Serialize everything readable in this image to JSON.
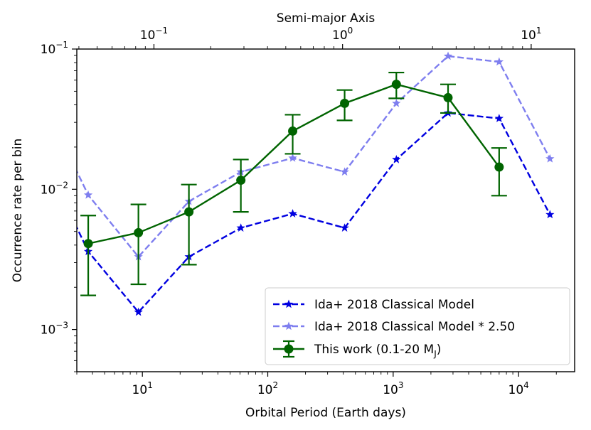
{
  "chart_data": {
    "type": "line",
    "title": "",
    "xlabel": "Orbital Period (Earth days)",
    "ylabel": "Occurrence rate per bin",
    "top_xlabel": "Semi-major Axis",
    "xscale": "log",
    "yscale": "log",
    "xlim": [
      3,
      28000
    ],
    "ylim": [
      0.0005,
      0.1
    ],
    "top_xlim": [
      0.039,
      17
    ],
    "x_ticks": [
      {
        "value": 10,
        "base": "10",
        "exp": "1"
      },
      {
        "value": 100,
        "base": "10",
        "exp": "2"
      },
      {
        "value": 1000,
        "base": "10",
        "exp": "3"
      },
      {
        "value": 10000,
        "base": "10",
        "exp": "4"
      }
    ],
    "y_ticks": [
      {
        "value": 0.001,
        "base": "10",
        "exp": "−3"
      },
      {
        "value": 0.01,
        "base": "10",
        "exp": "−2"
      },
      {
        "value": 0.1,
        "base": "10",
        "exp": "−1"
      }
    ],
    "top_ticks": [
      {
        "value": 0.1,
        "base": "10",
        "exp": "−1"
      },
      {
        "value": 1,
        "base": "10",
        "exp": "0"
      },
      {
        "value": 10,
        "base": "10",
        "exp": "1"
      }
    ],
    "legend_position": "lower-right",
    "series": [
      {
        "name": "Ida+ 2018 Classical Model",
        "color": "#0000e0",
        "opacity": 1,
        "linestyle": "dashed",
        "marker": "star",
        "x": [
          2.5,
          3.7,
          9.3,
          23.5,
          61,
          158,
          410,
          1060,
          2740,
          7000,
          17800
        ],
        "y": [
          0.0075,
          0.0036,
          0.00133,
          0.0033,
          0.0053,
          0.0067,
          0.0053,
          0.0163,
          0.035,
          0.032,
          0.0066
        ]
      },
      {
        "name": "Ida+ 2018 Classical Model * 2.50",
        "color": "#0000e0",
        "opacity": 0.5,
        "linestyle": "dashed",
        "marker": "star",
        "x": [
          2.5,
          3.7,
          9.3,
          23.5,
          61,
          158,
          410,
          1060,
          2740,
          7000,
          17800
        ],
        "y": [
          0.0188,
          0.0091,
          0.0033,
          0.0082,
          0.0133,
          0.0167,
          0.0133,
          0.041,
          0.089,
          0.081,
          0.0165
        ]
      },
      {
        "name": "This work (0.1-20 M",
        "name_sub": "J",
        "name_end": ")",
        "color": "#006400",
        "opacity": 1,
        "linestyle": "solid",
        "marker": "circle",
        "x": [
          3.7,
          9.3,
          23.5,
          61,
          158,
          410,
          1060,
          2740,
          7000
        ],
        "y": [
          0.0041,
          0.0049,
          0.0069,
          0.0116,
          0.026,
          0.041,
          0.056,
          0.045,
          0.0144
        ],
        "err_low": [
          0.00175,
          0.0021,
          0.0029,
          0.0069,
          0.0179,
          0.031,
          0.0445,
          0.035,
          0.009
        ],
        "err_high": [
          0.0065,
          0.0078,
          0.0108,
          0.0163,
          0.034,
          0.051,
          0.068,
          0.056,
          0.0197
        ]
      }
    ]
  }
}
